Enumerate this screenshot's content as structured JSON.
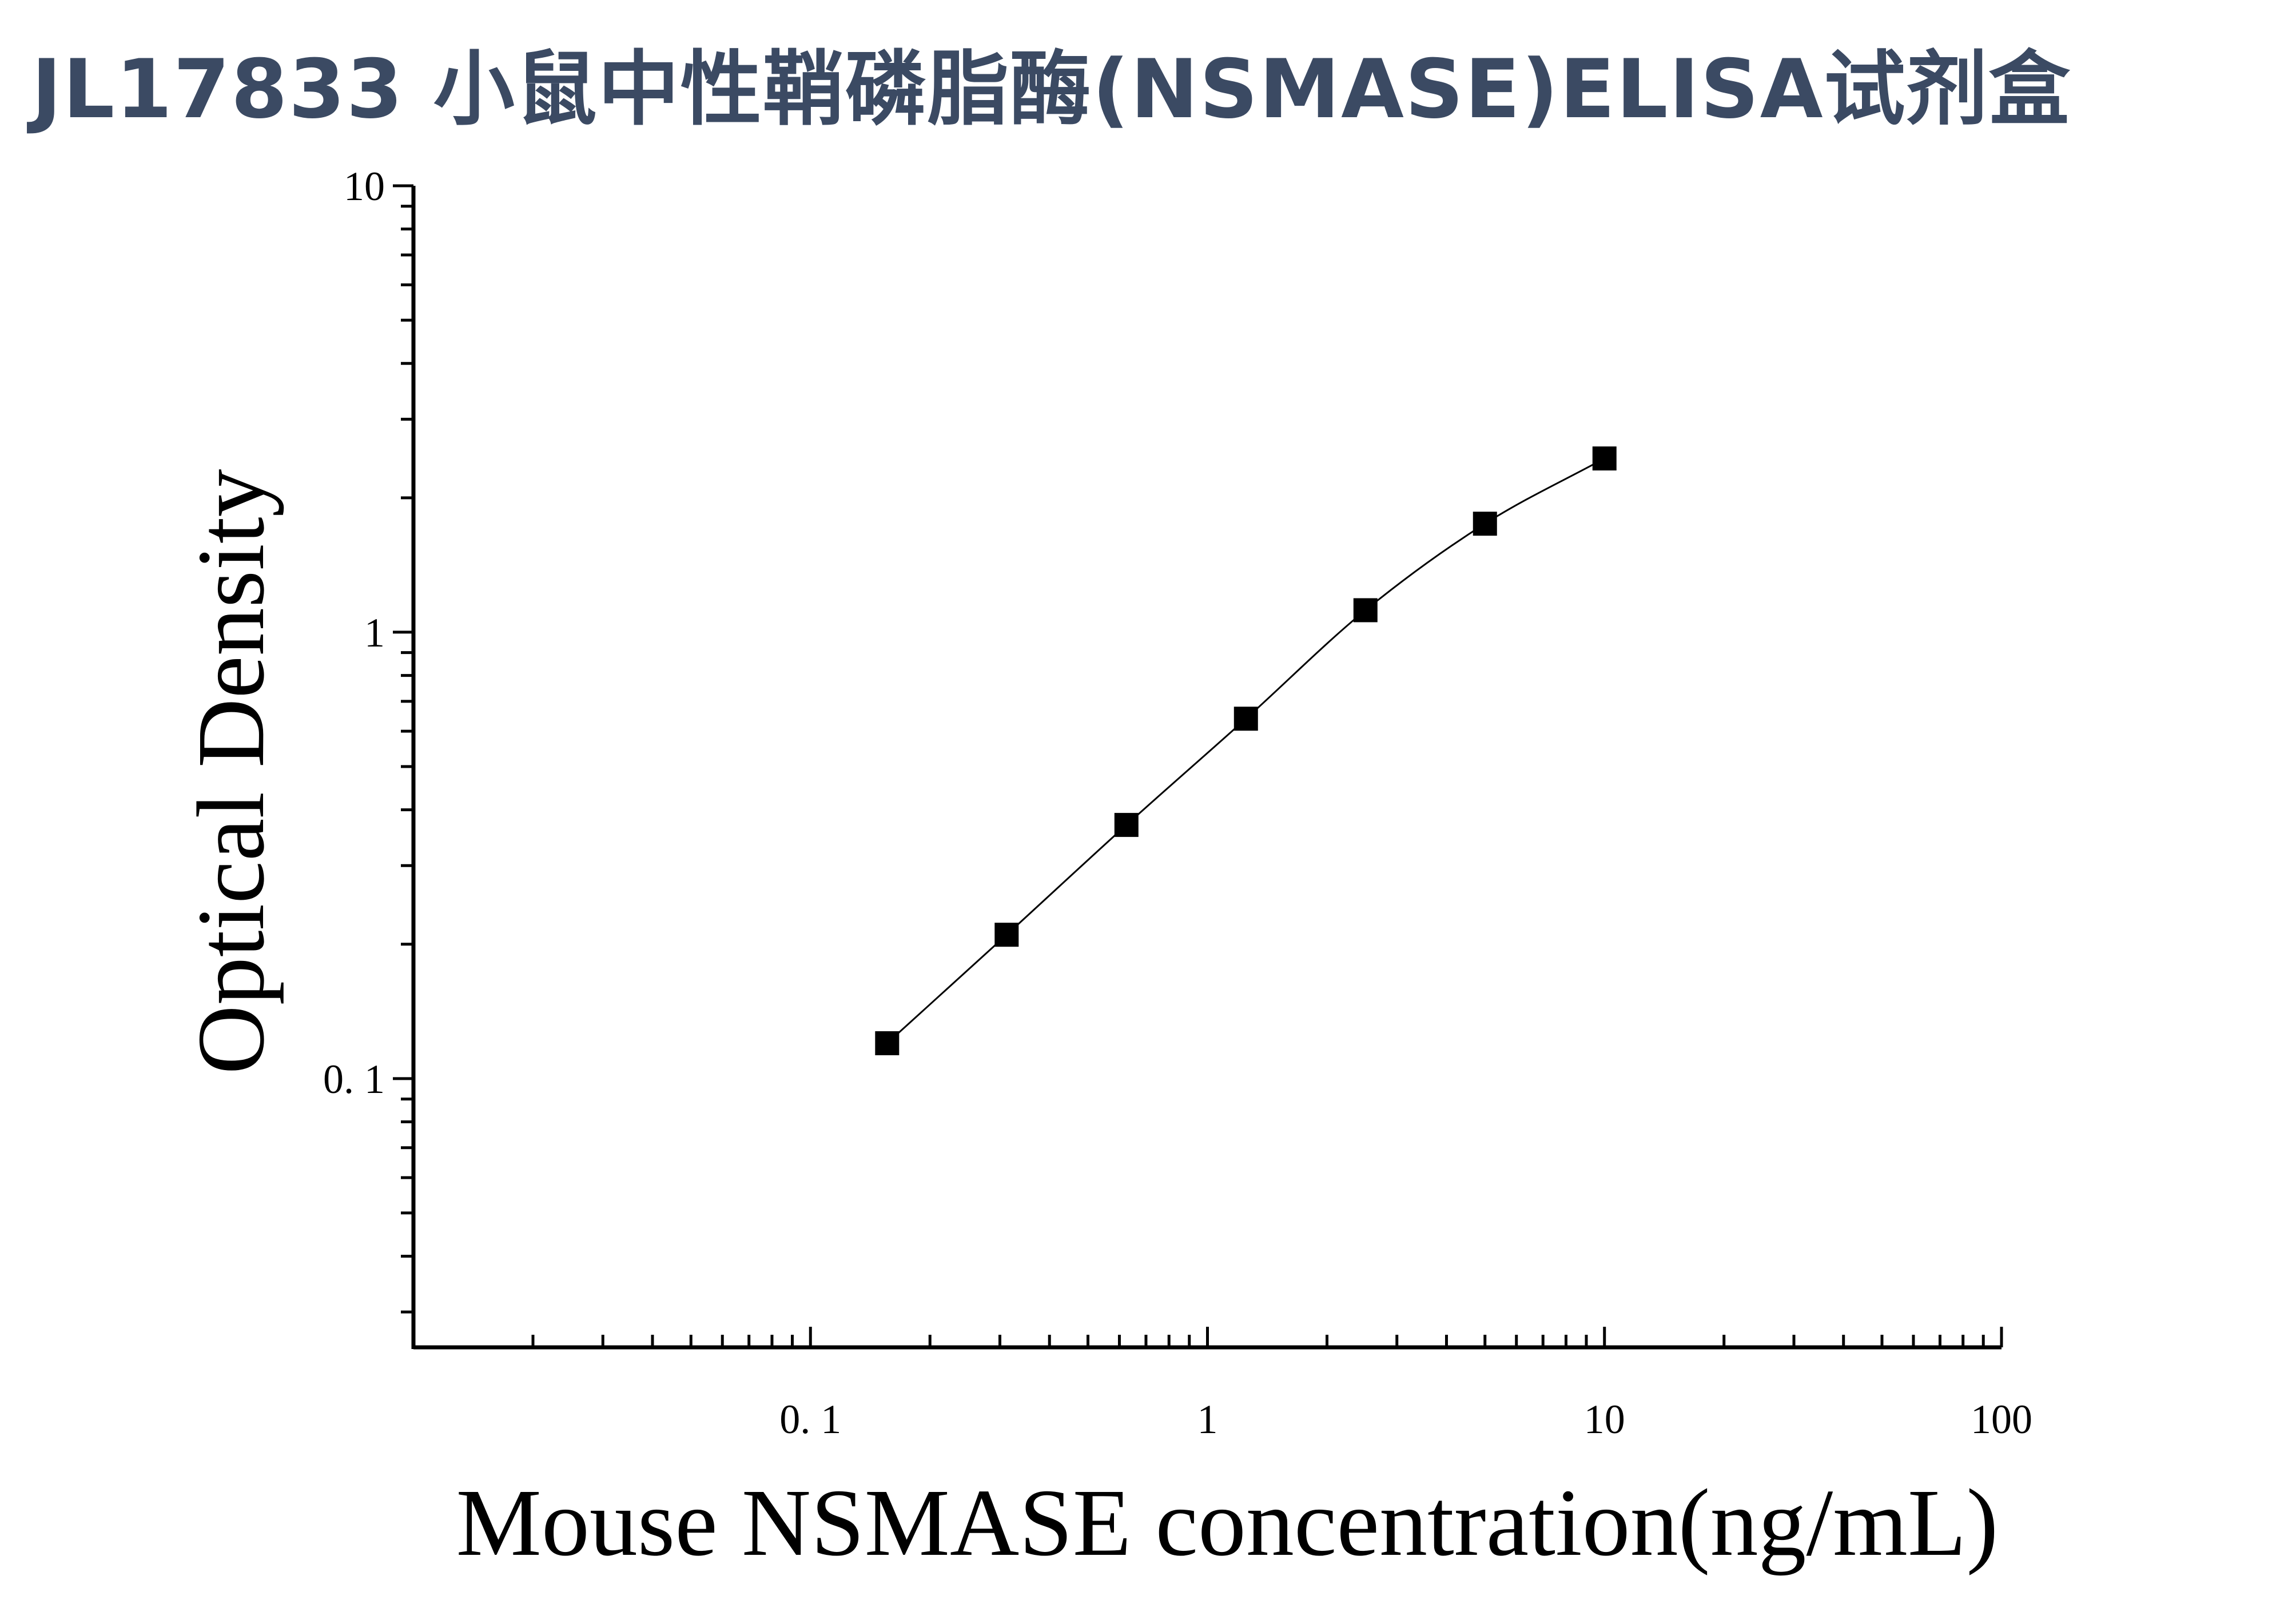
{
  "title": "JL17833 小鼠中性鞘磷脂酶(NSMASE)ELISA试剂盒",
  "chart_data": {
    "type": "scatter",
    "title": "JL17833 小鼠中性鞘磷脂酶(NSMASE)ELISA试剂盒",
    "xlabel": "Mouse NSMASE concentration(ng/mL)",
    "ylabel": "Optical Density",
    "xscale": "log",
    "yscale": "log",
    "xlim": [
      0.01,
      100
    ],
    "ylim": [
      0.025,
      10
    ],
    "x_ticks": [
      {
        "value": 0.1,
        "label": "0. 1"
      },
      {
        "value": 1,
        "label": "1"
      },
      {
        "value": 10,
        "label": "10"
      },
      {
        "value": 100,
        "label": "100"
      }
    ],
    "y_ticks": [
      {
        "value": 0.1,
        "label": "0. 1"
      },
      {
        "value": 1,
        "label": "1"
      },
      {
        "value": 10,
        "label": "10"
      }
    ],
    "grid": false,
    "legend": "none",
    "marker": "square",
    "color": "#000000",
    "series": [
      {
        "x": [
          0.156,
          0.312,
          0.625,
          1.25,
          2.5,
          5,
          10
        ],
        "y": [
          0.12,
          0.21,
          0.37,
          0.64,
          1.12,
          1.75,
          2.45
        ],
        "fit_line": true
      }
    ]
  }
}
